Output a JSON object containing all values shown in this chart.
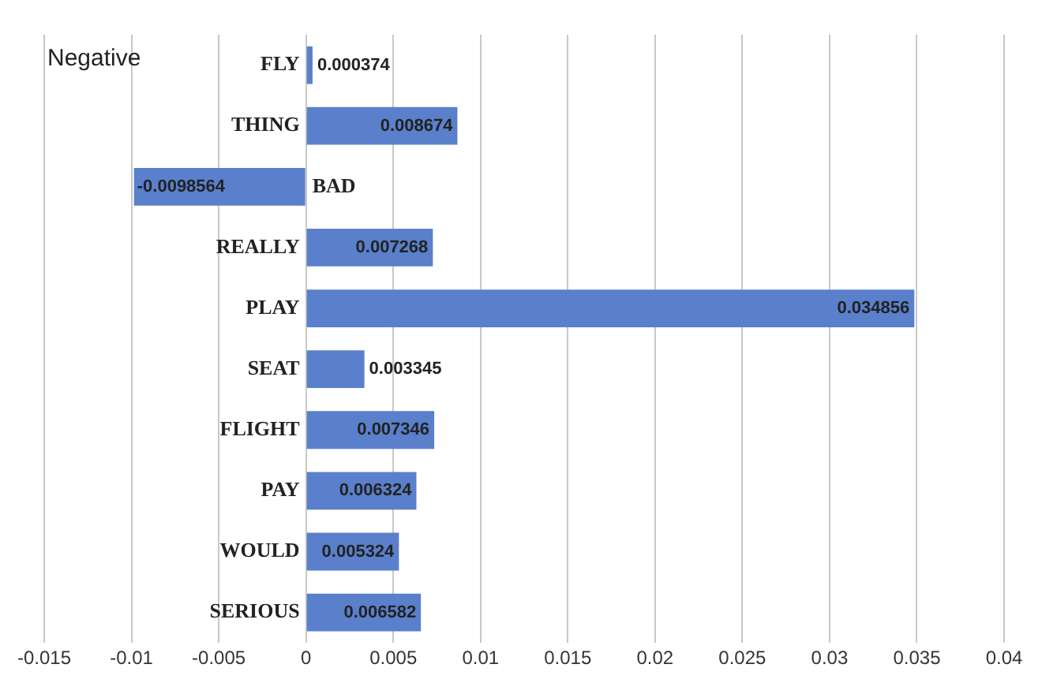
{
  "chart_data": {
    "type": "bar",
    "orientation": "horizontal",
    "title": "Negative",
    "categories": [
      "FLY",
      "THING",
      "BAD",
      "REALLY",
      "PLAY",
      "SEAT",
      "FLIGHT",
      "PAY",
      "WOULD",
      "SERIOUS"
    ],
    "values": [
      0.000374,
      0.008674,
      -0.0098564,
      0.007268,
      0.034856,
      0.003345,
      0.007346,
      0.006324,
      0.005324,
      0.006582
    ],
    "color": "#5a80cc",
    "xlim": [
      -0.015,
      0.04
    ],
    "xticks": [
      -0.015,
      -0.01,
      -0.005,
      0,
      0.005,
      0.01,
      0.015,
      0.02,
      0.025,
      0.03,
      0.035,
      0.04
    ],
    "grid": "x",
    "legend": false,
    "data_labels": true
  }
}
